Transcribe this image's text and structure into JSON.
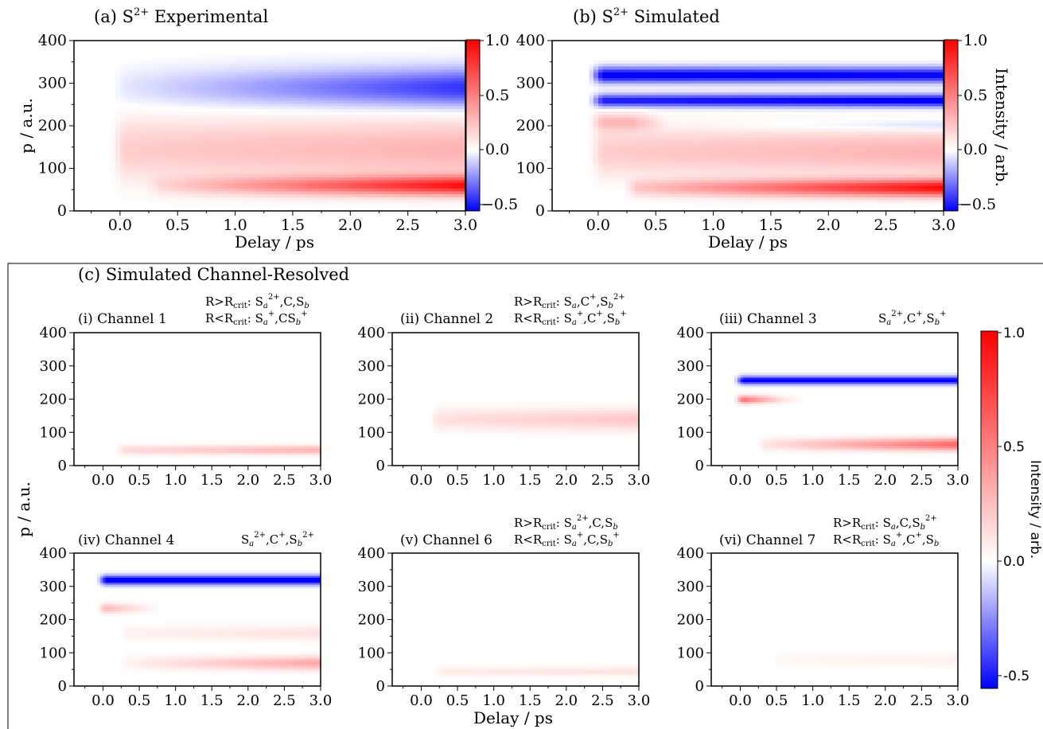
{
  "colors": {
    "positive": "#ff0000",
    "negative": "#0000ff",
    "zero": "#ffffff"
  },
  "top": {
    "y_label": "p / a.u.",
    "x_label": "Delay / ps",
    "a_title_prefix": "(a) S",
    "a_title_sup": "2+",
    "a_title_suffix": " Experimental",
    "b_title_prefix": "(b) S",
    "b_title_sup": "2+",
    "b_title_suffix": " Simulated",
    "colorbar_ticks": [
      "1.0",
      "0.5",
      "0.0",
      "−0.5"
    ],
    "colorbar_label": "Intensity / arb."
  },
  "bottom": {
    "section_title": "(c) Simulated Channel-Resolved",
    "y_label": "p / a.u.",
    "x_label": "Delay / ps",
    "colorbar_ticks": [
      "1.0",
      "0.5",
      "0.0",
      "-0.5"
    ],
    "colorbar_label": "Intensity / arb.",
    "channels": [
      {
        "title": "(i) Channel 1",
        "line1": "R>Rcrit: Sa2+,C,Sb",
        "line2": "R<Rcrit: Sa+,CSb+"
      },
      {
        "title": "(ii) Channel 2",
        "line1": "R>Rcrit: Sa,C+,Sb2+",
        "line2": "R<Rcrit: Sa+,C+,Sb+"
      },
      {
        "title": "(iii) Channel 3",
        "line1": "",
        "line2": "Sa2+,C+,Sb+"
      },
      {
        "title": "(iv) Channel 4",
        "line1": "",
        "line2": "Sa2+,C+,Sb2+"
      },
      {
        "title": "(v) Channel 6",
        "line1": "R>Rcrit: Sa2+,C,Sb",
        "line2": "R<Rcrit: Sa+,C,Sb+"
      },
      {
        "title": "(vi) Channel 7",
        "line1": "R>Rcrit: Sa,C,Sb2+",
        "line2": "R<Rcrit: Sa+,C+,Sb"
      }
    ]
  },
  "chart_data": [
    {
      "type": "heatmap",
      "panel": "a",
      "title": "(a) S2+ Experimental",
      "xlabel": "Delay / ps",
      "ylabel": "p / a.u.",
      "xlim": [
        -0.4,
        3.0
      ],
      "ylim": [
        0,
        400
      ],
      "xticks": [
        0.0,
        0.5,
        1.0,
        1.5,
        2.0,
        2.5,
        3.0
      ],
      "yticks": [
        0,
        100,
        200,
        300,
        400
      ],
      "clim": [
        -0.55,
        1.0
      ],
      "colorbar_ticks": [
        1.0,
        0.5,
        0.0,
        -0.5
      ],
      "features": [
        {
          "sign": "negative",
          "p_center": 290,
          "p_width": 45,
          "t_start": 0.0,
          "t_end": 3.0,
          "amp_start": 0.05,
          "amp_end": 0.45
        },
        {
          "sign": "positive",
          "p_center": 145,
          "p_width": 70,
          "t_start": 0.0,
          "t_end": 3.0,
          "amp_start": 0.2,
          "amp_end": 0.3
        },
        {
          "sign": "positive",
          "p_center": 60,
          "p_width": 22,
          "t_start": 0.3,
          "t_end": 3.0,
          "amp_start": 0.1,
          "amp_end": 0.9
        }
      ]
    },
    {
      "type": "heatmap",
      "panel": "b",
      "title": "(b) S2+ Simulated",
      "xlabel": "Delay / ps",
      "ylabel": "",
      "xlim": [
        -0.4,
        3.0
      ],
      "ylim": [
        0,
        400
      ],
      "xticks": [
        0.0,
        0.5,
        1.0,
        1.5,
        2.0,
        2.5,
        3.0
      ],
      "yticks": [
        0,
        100,
        200,
        300,
        400
      ],
      "clim": [
        -0.55,
        1.0
      ],
      "colorbar_ticks": [
        1.0,
        0.5,
        0.0,
        -0.5
      ],
      "colorbar_label": "Intensity / arb.",
      "features": [
        {
          "sign": "negative",
          "p_center": 320,
          "p_width": 18,
          "t_start": 0.0,
          "t_end": 3.0,
          "amp_start": 0.6,
          "amp_end": 0.55
        },
        {
          "sign": "negative",
          "p_center": 260,
          "p_width": 15,
          "t_start": 0.0,
          "t_end": 3.0,
          "amp_start": 0.5,
          "amp_end": 0.6
        },
        {
          "sign": "negative",
          "p_center": 200,
          "p_width": 15,
          "t_start": 0.5,
          "t_end": 3.0,
          "amp_start": 0.0,
          "amp_end": 0.15
        },
        {
          "sign": "positive",
          "p_center": 210,
          "p_width": 20,
          "t_start": 0.0,
          "t_end": 0.3,
          "amp_start": 0.25,
          "amp_end": 0.25
        },
        {
          "sign": "positive",
          "p_center": 140,
          "p_width": 55,
          "t_start": 0.0,
          "t_end": 3.0,
          "amp_start": 0.2,
          "amp_end": 0.3
        },
        {
          "sign": "positive",
          "p_center": 55,
          "p_width": 20,
          "t_start": 0.3,
          "t_end": 3.0,
          "amp_start": 0.2,
          "amp_end": 0.95
        }
      ]
    },
    {
      "type": "heatmap",
      "panel": "c-i",
      "title": "(i) Channel 1",
      "xlabel": "",
      "ylabel": "",
      "xlim": [
        -0.4,
        3.0
      ],
      "ylim": [
        0,
        400
      ],
      "xticks": [
        0.0,
        0.5,
        1.0,
        1.5,
        2.0,
        2.5,
        3.0
      ],
      "yticks": [
        0,
        100,
        200,
        300,
        400
      ],
      "clim": [
        -0.55,
        1.0
      ],
      "features": [
        {
          "sign": "positive",
          "p_center": 48,
          "p_width": 14,
          "t_start": 0.25,
          "t_end": 3.0,
          "amp_start": 0.15,
          "amp_end": 0.3
        }
      ]
    },
    {
      "type": "heatmap",
      "panel": "c-ii",
      "title": "(ii) Channel 2",
      "xlabel": "",
      "ylabel": "",
      "xlim": [
        -0.4,
        3.0
      ],
      "ylim": [
        0,
        400
      ],
      "xticks": [
        0.0,
        0.5,
        1.0,
        1.5,
        2.0,
        2.5,
        3.0
      ],
      "yticks": [
        0,
        100,
        200,
        300,
        400
      ],
      "clim": [
        -0.55,
        1.0
      ],
      "features": [
        {
          "sign": "positive",
          "p_center": 140,
          "p_width": 32,
          "t_start": 0.2,
          "t_end": 3.0,
          "amp_start": 0.12,
          "amp_end": 0.22
        }
      ]
    },
    {
      "type": "heatmap",
      "panel": "c-iii",
      "title": "(iii) Channel 3",
      "xlabel": "",
      "ylabel": "",
      "xlim": [
        -0.4,
        3.0
      ],
      "ylim": [
        0,
        400
      ],
      "xticks": [
        0.0,
        0.5,
        1.0,
        1.5,
        2.0,
        2.5,
        3.0
      ],
      "yticks": [
        0,
        100,
        200,
        300,
        400
      ],
      "clim": [
        -0.55,
        1.0
      ],
      "features": [
        {
          "sign": "negative",
          "p_center": 258,
          "p_width": 12,
          "t_start": 0.0,
          "t_end": 3.0,
          "amp_start": 0.6,
          "amp_end": 0.6
        },
        {
          "sign": "positive",
          "p_center": 200,
          "p_width": 12,
          "t_start": 0.0,
          "t_end": 0.6,
          "amp_start": 0.6,
          "amp_end": 0.1
        },
        {
          "sign": "positive",
          "p_center": 65,
          "p_width": 18,
          "t_start": 0.3,
          "t_end": 3.0,
          "amp_start": 0.1,
          "amp_end": 0.6
        }
      ]
    },
    {
      "type": "heatmap",
      "panel": "c-iv",
      "title": "(iv) Channel 4",
      "xlabel": "",
      "ylabel": "",
      "xlim": [
        -0.4,
        3.0
      ],
      "ylim": [
        0,
        400
      ],
      "xticks": [
        0.0,
        0.5,
        1.0,
        1.5,
        2.0,
        2.5,
        3.0
      ],
      "yticks": [
        0,
        100,
        200,
        300,
        400
      ],
      "clim": [
        -0.55,
        1.0
      ],
      "features": [
        {
          "sign": "negative",
          "p_center": 320,
          "p_width": 14,
          "t_start": 0.0,
          "t_end": 3.0,
          "amp_start": 0.6,
          "amp_end": 0.6
        },
        {
          "sign": "positive",
          "p_center": 235,
          "p_width": 14,
          "t_start": 0.0,
          "t_end": 0.5,
          "amp_start": 0.3,
          "amp_end": 0.1
        },
        {
          "sign": "positive",
          "p_center": 160,
          "p_width": 22,
          "t_start": 0.3,
          "t_end": 3.0,
          "amp_start": 0.05,
          "amp_end": 0.12
        },
        {
          "sign": "positive",
          "p_center": 70,
          "p_width": 20,
          "t_start": 0.3,
          "t_end": 3.0,
          "amp_start": 0.05,
          "amp_end": 0.35
        }
      ]
    },
    {
      "type": "heatmap",
      "panel": "c-v",
      "title": "(v) Channel 6",
      "xlabel": "",
      "ylabel": "",
      "xlim": [
        -0.4,
        3.0
      ],
      "ylim": [
        0,
        400
      ],
      "xticks": [
        0.0,
        0.5,
        1.0,
        1.5,
        2.0,
        2.5,
        3.0
      ],
      "yticks": [
        0,
        100,
        200,
        300,
        400
      ],
      "clim": [
        -0.55,
        1.0
      ],
      "features": [
        {
          "sign": "positive",
          "p_center": 45,
          "p_width": 14,
          "t_start": 0.25,
          "t_end": 3.0,
          "amp_start": 0.08,
          "amp_end": 0.12
        }
      ]
    },
    {
      "type": "heatmap",
      "panel": "c-vi",
      "title": "(vi) Channel 7",
      "xlabel": "",
      "ylabel": "",
      "xlim": [
        -0.4,
        3.0
      ],
      "ylim": [
        0,
        400
      ],
      "xticks": [
        0.0,
        0.5,
        1.0,
        1.5,
        2.0,
        2.5,
        3.0
      ],
      "yticks": [
        0,
        100,
        200,
        300,
        400
      ],
      "clim": [
        -0.55,
        1.0
      ],
      "features": [
        {
          "sign": "positive",
          "p_center": 80,
          "p_width": 22,
          "t_start": 0.5,
          "t_end": 3.0,
          "amp_start": 0.03,
          "amp_end": 0.06
        }
      ]
    }
  ]
}
